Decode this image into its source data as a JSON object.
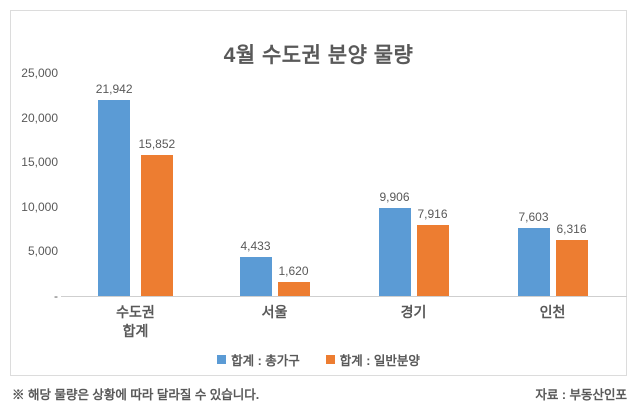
{
  "chart_data": {
    "type": "bar",
    "title": "4월 수도권 분양 물량",
    "categories": [
      "수도권\n합계",
      "서울",
      "경기",
      "인천"
    ],
    "series": [
      {
        "name": "합계 : 총가구",
        "color": "#5B9BD5",
        "values": [
          21942,
          4433,
          9906,
          7603
        ],
        "labels": [
          "21,942",
          "4,433",
          "9,906",
          "7,603"
        ]
      },
      {
        "name": "합계 : 일반분양",
        "color": "#ED7D31",
        "values": [
          15852,
          1620,
          7916,
          6316
        ],
        "labels": [
          "15,852",
          "1,620",
          "7,916",
          "6,316"
        ]
      }
    ],
    "ylim": [
      0,
      25000
    ],
    "yticks": [
      "25,000",
      "20,000",
      "15,000",
      "10,000",
      "5,000",
      "-"
    ],
    "grid": false,
    "legend_position": "bottom"
  },
  "footer": {
    "disclaimer": "※ 해당 물량은 상황에 따라 달라질 수 있습니다.",
    "source": "자료 : 부동산인포"
  },
  "colors": {
    "series_total_blue": "#5B9BD5",
    "series_general_orange": "#ED7D31",
    "text_gray": "#595959",
    "frame_border": "#DCDCDC",
    "axis_line": "#CFCFCF"
  }
}
